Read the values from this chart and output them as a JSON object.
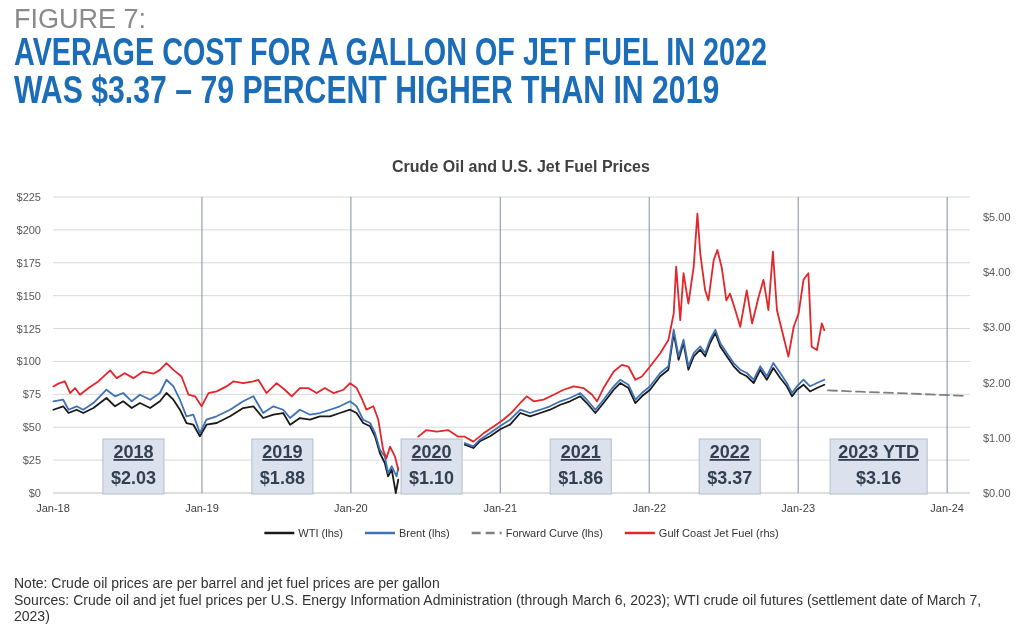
{
  "chart_data": {
    "type": "line",
    "title": "AVERAGE COST FOR A GALLON OF JET FUEL IN 2022 WAS $3.37 – 79 PERCENT HIGHER THAN IN 2019",
    "subtitle": "Crude Oil and U.S. Jet Fuel Prices",
    "annotations": [
      "FIGURE 7:",
      "2018\n$2.03",
      "2019\n$1.88",
      "2020\n$1.10",
      "2021\n$1.86",
      "2022\n$3.37",
      "2023 YTD\n$3.16",
      "Note: Crude oil prices are per barrel and jet fuel prices are per gallon",
      "Sources: Crude oil and jet fuel prices per U.S. Energy Information Administration (through March 6, 2023); WTI crude oil futures (settlement date of March 7, 2023)"
    ],
    "xlim": [
      "2018-01-01",
      "2024-02-26"
    ],
    "xticks": [
      {
        "value": "2018-01-01",
        "label": "Jan-18"
      },
      {
        "value": "2019-01-01",
        "label": "Jan-19"
      },
      {
        "value": "2020-01-01",
        "label": "Jan-20"
      },
      {
        "value": "2021-01-01",
        "label": "Jan-21"
      },
      {
        "value": "2022-01-01",
        "label": "Jan-22"
      },
      {
        "value": "2023-01-01",
        "label": "Jan-23"
      },
      {
        "value": "2024-01-01",
        "label": "Jan-24"
      }
    ],
    "ylim": [
      0,
      225
    ],
    "yticks": [
      {
        "value": 0,
        "label": "$0"
      },
      {
        "value": 25,
        "label": "$25"
      },
      {
        "value": 50,
        "label": "$50"
      },
      {
        "value": 75,
        "label": "$75"
      },
      {
        "value": 100,
        "label": "$100"
      },
      {
        "value": 125,
        "label": "$125"
      },
      {
        "value": 150,
        "label": "$150"
      },
      {
        "value": 175,
        "label": "$175"
      },
      {
        "value": 200,
        "label": "$200"
      },
      {
        "value": 225,
        "label": "$225"
      }
    ],
    "y2lim": [
      0,
      5.36
    ],
    "y2ticks": [
      {
        "value": 0,
        "label": "$0.00"
      },
      {
        "value": 1,
        "label": "$1.00"
      },
      {
        "value": 2,
        "label": "$2.00"
      },
      {
        "value": 3,
        "label": "$3.00"
      },
      {
        "value": 4,
        "label": "$4.00"
      },
      {
        "value": 5,
        "label": "$5.00"
      }
    ],
    "grid": true,
    "legend": "bottom",
    "series": [
      {
        "name": "WTI (lhs)",
        "color": "#1a1a1a",
        "x": [
          "2018-01-02",
          "2018-01-26",
          "2018-02-08",
          "2018-02-28",
          "2018-03-16",
          "2018-04-10",
          "2018-05-12",
          "2018-06-02",
          "2018-06-22",
          "2018-07-13",
          "2018-08-02",
          "2018-08-27",
          "2018-09-20",
          "2018-10-06",
          "2018-10-23",
          "2018-11-08",
          "2018-11-24",
          "2018-12-11",
          "2018-12-27",
          "2019-01-12",
          "2019-02-06",
          "2019-03-11",
          "2019-04-12",
          "2019-05-07",
          "2019-05-31",
          "2019-06-25",
          "2019-07-19",
          "2019-08-05",
          "2019-08-29",
          "2019-09-23",
          "2019-10-17",
          "2019-11-11",
          "2019-12-05",
          "2019-12-30",
          "2020-01-15",
          "2020-01-31",
          "2020-02-17",
          "2020-02-29",
          "2020-03-12",
          "2020-03-24",
          "2020-04-01",
          "2020-04-10",
          "2020-04-20",
          "2020-04-26",
          "2020-07-01",
          "2020-10-06",
          "2020-10-27",
          "2020-11-12",
          "2020-12-07",
          "2021-01-01",
          "2021-01-25",
          "2021-02-19",
          "2021-03-15",
          "2021-04-09",
          "2021-05-03",
          "2021-05-28",
          "2021-06-21",
          "2021-07-16",
          "2021-08-01",
          "2021-08-22",
          "2021-09-11",
          "2021-10-06",
          "2021-10-22",
          "2021-11-11",
          "2021-11-28",
          "2021-12-14",
          "2022-01-03",
          "2022-01-28",
          "2022-02-17",
          "2022-03-02",
          "2022-03-14",
          "2022-03-26",
          "2022-04-07",
          "2022-04-20",
          "2022-05-06",
          "2022-05-18",
          "2022-05-30",
          "2022-06-12",
          "2022-06-24",
          "2022-07-10",
          "2022-07-27",
          "2022-08-12",
          "2022-08-28",
          "2022-09-14",
          "2022-09-30",
          "2022-10-16",
          "2022-11-01",
          "2022-11-18",
          "2022-12-04",
          "2022-12-17",
          "2022-12-29",
          "2023-01-14",
          "2023-01-30",
          "2023-02-16",
          "2023-03-06"
        ],
        "values": [
          63.3,
          65.9,
          60.8,
          63.3,
          60.8,
          64.6,
          72.2,
          65.9,
          69.7,
          64.6,
          68.4,
          64.6,
          69.7,
          76,
          70.9,
          63.3,
          53.2,
          51.9,
          43.1,
          51.9,
          53.2,
          58.3,
          64.6,
          65.9,
          57,
          59.5,
          60.8,
          51.9,
          57,
          55.7,
          58.3,
          58.3,
          60.8,
          63.3,
          60.8,
          53.2,
          50.7,
          43.1,
          30.4,
          22.8,
          12.7,
          17.7,
          0,
          10.1,
          null,
          36.7,
          34.2,
          39.3,
          43.1,
          48.5,
          52,
          60.8,
          58.3,
          60.8,
          63.3,
          67.1,
          69.7,
          73.5,
          68.4,
          60.8,
          68.4,
          78.5,
          83.6,
          79.8,
          68.4,
          73.5,
          78.5,
          88.7,
          93.7,
          121.6,
          101.3,
          114,
          93.7,
          103.9,
          108.9,
          103.9,
          114,
          121.6,
          111.4,
          103.9,
          96.3,
          91.2,
          88.7,
          83.6,
          93.7,
          86.1,
          95,
          87.4,
          81.1,
          73.5,
          78.5,
          82.3,
          77.2,
          79.8,
          82.3
        ]
      },
      {
        "name": "Brent (lhs)",
        "color": "#3f72b5",
        "x": [
          "2018-01-02",
          "2018-01-26",
          "2018-02-08",
          "2018-02-28",
          "2018-03-16",
          "2018-04-10",
          "2018-05-12",
          "2018-06-02",
          "2018-06-22",
          "2018-07-13",
          "2018-08-02",
          "2018-08-27",
          "2018-09-20",
          "2018-10-06",
          "2018-10-23",
          "2018-11-08",
          "2018-11-24",
          "2018-12-11",
          "2018-12-27",
          "2019-01-12",
          "2019-02-06",
          "2019-03-11",
          "2019-04-12",
          "2019-05-07",
          "2019-05-31",
          "2019-06-25",
          "2019-07-19",
          "2019-08-05",
          "2019-08-29",
          "2019-09-23",
          "2019-10-17",
          "2019-11-11",
          "2019-12-05",
          "2019-12-30",
          "2020-01-15",
          "2020-01-31",
          "2020-02-17",
          "2020-02-29",
          "2020-03-12",
          "2020-03-24",
          "2020-04-01",
          "2020-04-10",
          "2020-04-22",
          "2020-04-26",
          "2020-07-01",
          "2020-10-06",
          "2020-10-27",
          "2020-11-12",
          "2020-12-07",
          "2021-01-01",
          "2021-01-25",
          "2021-02-19",
          "2021-03-15",
          "2021-04-09",
          "2021-05-03",
          "2021-05-28",
          "2021-06-21",
          "2021-07-16",
          "2021-08-01",
          "2021-08-22",
          "2021-09-11",
          "2021-10-06",
          "2021-10-22",
          "2021-11-11",
          "2021-11-28",
          "2021-12-14",
          "2022-01-03",
          "2022-01-28",
          "2022-02-17",
          "2022-03-02",
          "2022-03-14",
          "2022-03-26",
          "2022-04-07",
          "2022-04-20",
          "2022-05-06",
          "2022-05-18",
          "2022-05-30",
          "2022-06-12",
          "2022-06-24",
          "2022-07-10",
          "2022-07-27",
          "2022-08-12",
          "2022-08-28",
          "2022-09-14",
          "2022-09-30",
          "2022-10-16",
          "2022-11-01",
          "2022-11-18",
          "2022-12-04",
          "2022-12-17",
          "2022-12-29",
          "2023-01-14",
          "2023-01-30",
          "2023-02-16",
          "2023-03-06"
        ],
        "values": [
          69.7,
          70.9,
          63.3,
          65.9,
          63.3,
          68.4,
          78.5,
          73.5,
          76,
          69.7,
          74.7,
          70.9,
          76,
          86.1,
          81.1,
          70.9,
          58.3,
          59.5,
          45.6,
          55.7,
          58.3,
          63.3,
          69.7,
          73.5,
          60.8,
          65.9,
          63.3,
          57,
          63.3,
          59.5,
          60.8,
          63.3,
          65.9,
          69.7,
          65.9,
          55.7,
          53.2,
          45.6,
          32.9,
          27.9,
          15.2,
          20.3,
          12.7,
          19,
          null,
          38,
          35.5,
          40.5,
          45.6,
          51,
          55.7,
          63.3,
          60.8,
          63.3,
          65.9,
          69.7,
          72.2,
          76,
          70.9,
          63.3,
          70.9,
          81.1,
          86.1,
          82.3,
          70.9,
          76,
          81.1,
          91.2,
          96.3,
          124.1,
          103.9,
          116.5,
          96.3,
          106.4,
          111.4,
          106.4,
          116.5,
          124.1,
          114,
          106.4,
          98.8,
          93.7,
          91.2,
          86.1,
          96.3,
          88.7,
          98.8,
          91.2,
          83.6,
          76,
          81.1,
          86.1,
          81.1,
          83.6,
          86.1
        ]
      },
      {
        "name": "Forward Curve (lhs)",
        "color": "#808080",
        "line_style": "dashed",
        "x": [
          "2023-03-15",
          "2023-06-01",
          "2023-09-01",
          "2023-12-01",
          "2024-02-15"
        ],
        "values": [
          78,
          77,
          76,
          74.8,
          73.8
        ]
      },
      {
        "name": "Gulf Coast Jet Fuel (rhs)",
        "color": "#e3262b",
        "axis": "y2",
        "x": [
          "2018-01-02",
          "2018-01-14",
          "2018-01-30",
          "2018-02-12",
          "2018-02-24",
          "2018-03-08",
          "2018-03-29",
          "2018-04-22",
          "2018-05-21",
          "2018-06-06",
          "2018-06-26",
          "2018-07-17",
          "2018-08-10",
          "2018-09-04",
          "2018-09-20",
          "2018-10-06",
          "2018-10-23",
          "2018-11-12",
          "2018-11-29",
          "2018-12-15",
          "2018-12-31",
          "2019-01-17",
          "2019-02-06",
          "2019-03-02",
          "2019-03-19",
          "2019-04-12",
          "2019-05-07",
          "2019-05-19",
          "2019-06-08",
          "2019-07-03",
          "2019-07-23",
          "2019-08-09",
          "2019-08-29",
          "2019-09-18",
          "2019-10-09",
          "2019-10-29",
          "2019-11-19",
          "2019-12-14",
          "2019-12-30",
          "2020-01-15",
          "2020-01-27",
          "2020-02-08",
          "2020-02-25",
          "2020-03-08",
          "2020-03-20",
          "2020-03-28",
          "2020-04-06",
          "2020-04-18",
          "2020-04-26",
          "2020-05-20",
          "2020-06-14",
          "2020-07-04",
          "2020-07-29",
          "2020-08-26",
          "2020-09-20",
          "2020-10-06",
          "2020-10-27",
          "2020-11-21",
          "2020-12-15",
          "2021-01-09",
          "2021-01-28",
          "2021-02-19",
          "2021-03-07",
          "2021-03-24",
          "2021-04-17",
          "2021-05-12",
          "2021-06-05",
          "2021-06-30",
          "2021-07-24",
          "2021-08-14",
          "2021-08-26",
          "2021-09-11",
          "2021-10-06",
          "2021-10-26",
          "2021-11-11",
          "2021-11-28",
          "2021-12-14",
          "2022-01-03",
          "2022-01-28",
          "2022-02-17",
          "2022-03-02",
          "2022-03-08",
          "2022-03-18",
          "2022-03-26",
          "2022-04-07",
          "2022-04-20",
          "2022-04-29",
          "2022-05-06",
          "2022-05-18",
          "2022-05-26",
          "2022-06-08",
          "2022-06-17",
          "2022-06-28",
          "2022-07-09",
          "2022-07-18",
          "2022-07-31",
          "2022-08-12",
          "2022-08-28",
          "2022-09-10",
          "2022-09-26",
          "2022-10-08",
          "2022-10-20",
          "2022-10-31",
          "2022-11-10",
          "2022-11-26",
          "2022-12-08",
          "2022-12-21",
          "2023-01-02",
          "2023-01-14",
          "2023-01-26",
          "2023-02-03",
          "2023-02-16",
          "2023-02-28",
          "2023-03-06"
        ],
        "values": [
          1.93,
          1.98,
          2.02,
          1.81,
          1.9,
          1.78,
          1.9,
          2.02,
          2.22,
          2.08,
          2.17,
          2.08,
          2.2,
          2.16,
          2.23,
          2.35,
          2.23,
          2.11,
          1.78,
          1.75,
          1.57,
          1.81,
          1.84,
          1.93,
          2.02,
          1.99,
          2.02,
          2.05,
          1.81,
          1.99,
          1.87,
          1.75,
          1.9,
          1.9,
          1.81,
          1.9,
          1.81,
          1.87,
          1.99,
          1.9,
          1.72,
          1.51,
          1.57,
          1.33,
          0.78,
          0.63,
          0.84,
          0.66,
          0.42,
          null,
          1.02,
          1.14,
          1.11,
          1.14,
          1.02,
          1.02,
          0.93,
          1.08,
          1.2,
          1.33,
          1.45,
          1.63,
          1.75,
          1.66,
          1.69,
          1.78,
          1.87,
          1.93,
          1.9,
          1.78,
          1.66,
          1.9,
          2.2,
          2.32,
          2.29,
          2.05,
          2.11,
          2.29,
          2.53,
          2.77,
          3.25,
          4.1,
          3.13,
          3.98,
          3.43,
          4.1,
          5.06,
          4.34,
          3.67,
          3.49,
          4.22,
          4.4,
          4.07,
          3.49,
          3.61,
          3.31,
          3.01,
          3.67,
          3.07,
          3.55,
          3.86,
          3.31,
          4.37,
          3.31,
          2.83,
          2.47,
          3.01,
          3.25,
          3.86,
          3.98,
          2.65,
          2.59,
          3.07,
          2.95
        ]
      }
    ]
  }
}
